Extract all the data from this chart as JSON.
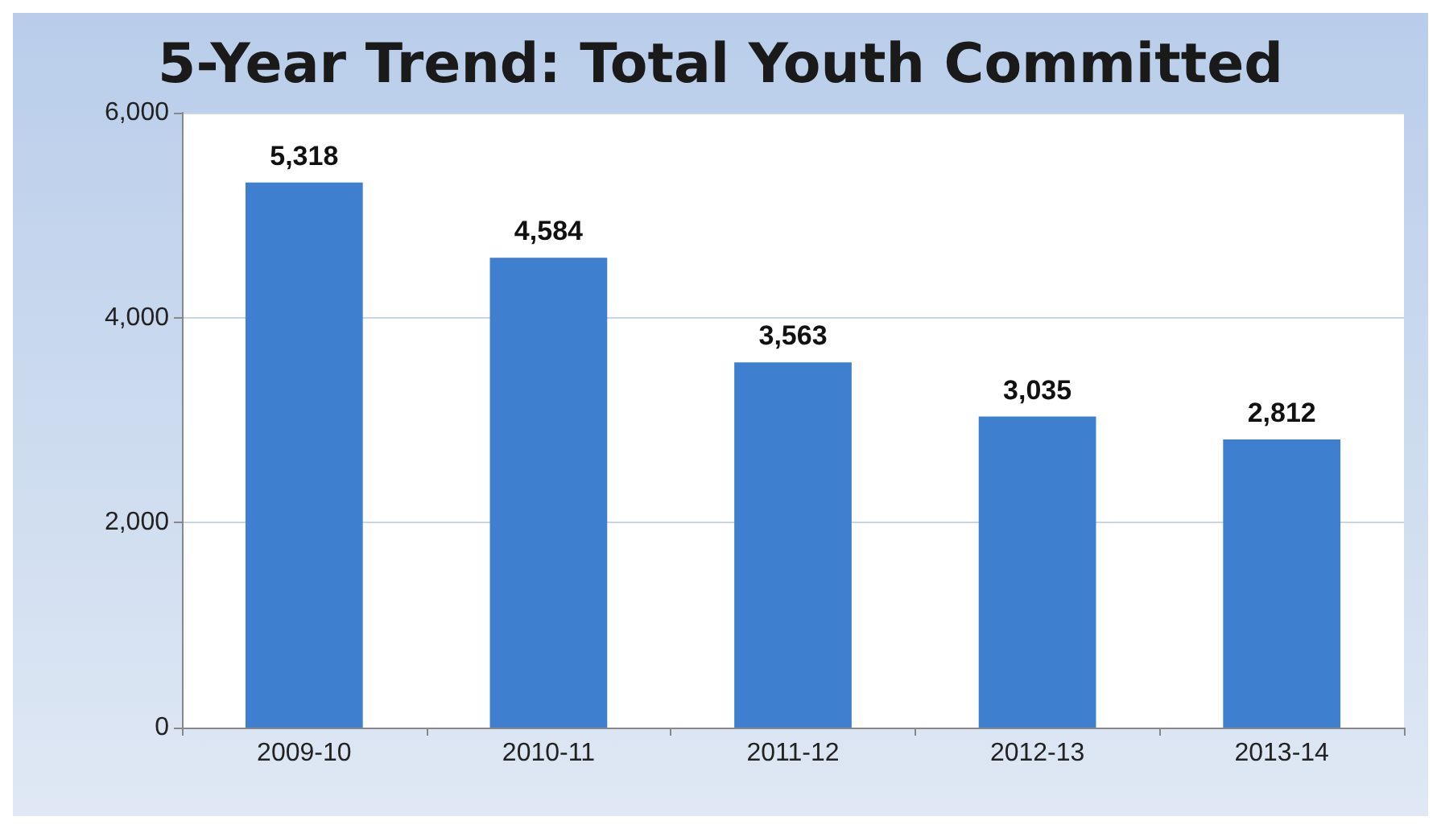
{
  "chart_data": {
    "type": "bar",
    "title": "5-Year Trend: Total Youth Committed",
    "categories": [
      "2009-10",
      "2010-11",
      "2011-12",
      "2012-13",
      "2013-14"
    ],
    "values": [
      5318,
      4584,
      3563,
      3035,
      2812
    ],
    "color": "#3f7fcf",
    "ylim": [
      0,
      6000
    ],
    "yticks": [
      {
        "value": 0,
        "label": "0"
      },
      {
        "value": 2000,
        "label": "2,000"
      },
      {
        "value": 4000,
        "label": "4,000"
      },
      {
        "value": 6000,
        "label": "6,000"
      }
    ],
    "value_labels": [
      "5,318",
      "4,584",
      "3,563",
      "3,035",
      "2,812"
    ],
    "grid": "y"
  }
}
